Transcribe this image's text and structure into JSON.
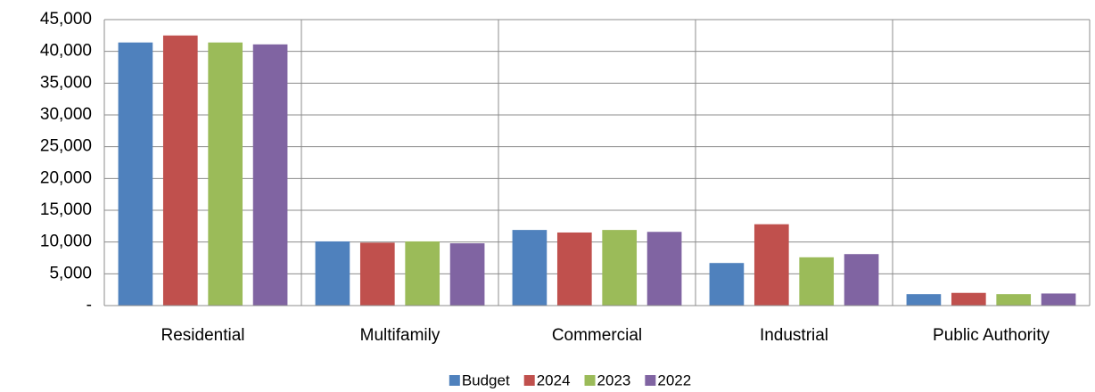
{
  "chart_data": {
    "type": "bar",
    "categories": [
      "Residential",
      "Multifamily",
      "Commercial",
      "Industrial",
      "Public Authority"
    ],
    "series": [
      {
        "name": "Budget",
        "color": "#4f81bd",
        "values": [
          41400,
          10100,
          11900,
          6700,
          1800
        ]
      },
      {
        "name": "2024",
        "color": "#c0504d",
        "values": [
          42500,
          9900,
          11500,
          12800,
          2000
        ]
      },
      {
        "name": "2023",
        "color": "#9bbb59",
        "values": [
          41400,
          10100,
          11900,
          7600,
          1800
        ]
      },
      {
        "name": "2022",
        "color": "#8064a2",
        "values": [
          41100,
          9800,
          11600,
          8100,
          1900
        ]
      }
    ],
    "ylim": [
      0,
      45000
    ],
    "yticks": [
      {
        "value": 0,
        "label": "-"
      },
      {
        "value": 5000,
        "label": "5,000"
      },
      {
        "value": 10000,
        "label": "10,000"
      },
      {
        "value": 15000,
        "label": "15,000"
      },
      {
        "value": 20000,
        "label": "20,000"
      },
      {
        "value": 25000,
        "label": "25,000"
      },
      {
        "value": 30000,
        "label": "30,000"
      },
      {
        "value": 35000,
        "label": "35,000"
      },
      {
        "value": 40000,
        "label": "40,000"
      },
      {
        "value": 45000,
        "label": "45,000"
      }
    ],
    "grid": true,
    "legend": "bottom"
  }
}
